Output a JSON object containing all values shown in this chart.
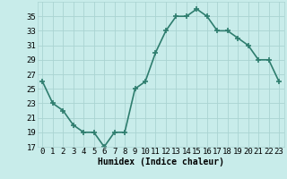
{
  "x": [
    0,
    1,
    2,
    3,
    4,
    5,
    6,
    7,
    8,
    9,
    10,
    11,
    12,
    13,
    14,
    15,
    16,
    17,
    18,
    19,
    20,
    21,
    22,
    23
  ],
  "y": [
    26,
    23,
    22,
    20,
    19,
    19,
    17,
    19,
    19,
    25,
    26,
    30,
    33,
    35,
    35,
    36,
    35,
    33,
    33,
    32,
    31,
    29,
    29,
    26
  ],
  "line_color": "#2e7d6e",
  "bg_color": "#c8ecea",
  "plot_bg_color": "#c8ecea",
  "grid_color": "#aad4d2",
  "xlabel": "Humidex (Indice chaleur)",
  "xlim": [
    -0.5,
    23.5
  ],
  "ylim": [
    17,
    37
  ],
  "yticks": [
    17,
    19,
    21,
    23,
    25,
    27,
    29,
    31,
    33,
    35
  ],
  "xticks": [
    0,
    1,
    2,
    3,
    4,
    5,
    6,
    7,
    8,
    9,
    10,
    11,
    12,
    13,
    14,
    15,
    16,
    17,
    18,
    19,
    20,
    21,
    22,
    23
  ],
  "xtick_labels": [
    "0",
    "1",
    "2",
    "3",
    "4",
    "5",
    "6",
    "7",
    "8",
    "9",
    "10",
    "11",
    "12",
    "13",
    "14",
    "15",
    "16",
    "17",
    "18",
    "19",
    "20",
    "21",
    "22",
    "23"
  ],
  "marker": "+",
  "linewidth": 1.2,
  "markersize": 4,
  "markeredgewidth": 1.2,
  "axis_fontsize": 7,
  "tick_fontsize": 6.5
}
